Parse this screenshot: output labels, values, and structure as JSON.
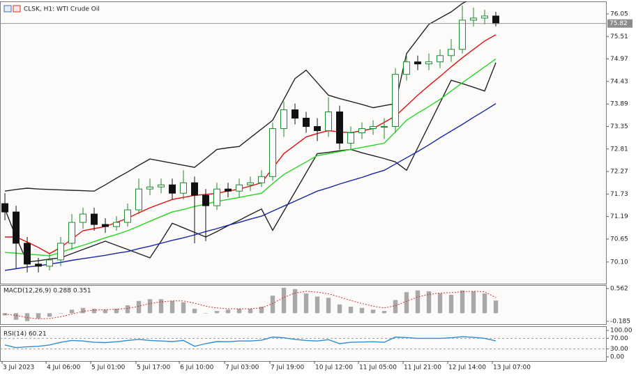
{
  "chart_data": [
    {
      "type": "candlestick",
      "title": "CLSK, H1:  WTI Crude Oil",
      "up_color": "#1b8a2a",
      "down_color": "#111111",
      "open": [
        71.5,
        71.3,
        70.55,
        70.05,
        70.0,
        70.15,
        70.55,
        71.05,
        71.25,
        71.0,
        70.95,
        71.05,
        71.35,
        71.85,
        71.9,
        71.95,
        71.75,
        72.0,
        71.7,
        71.45,
        71.85,
        71.8,
        71.95,
        72.0,
        72.15,
        73.3,
        73.75,
        73.55,
        73.35,
        73.25,
        73.7,
        72.95,
        73.2,
        73.3,
        73.35,
        73.35,
        74.6,
        74.9,
        74.85,
        74.9,
        75.05,
        75.2,
        75.9,
        75.95,
        76.0
      ],
      "high": [
        71.75,
        71.45,
        70.7,
        70.2,
        70.3,
        70.7,
        71.25,
        71.4,
        71.4,
        71.15,
        71.2,
        71.5,
        72.1,
        72.1,
        72.1,
        72.1,
        72.3,
        72.15,
        71.85,
        72.0,
        72.0,
        72.1,
        72.15,
        72.3,
        73.45,
        73.95,
        73.9,
        73.7,
        73.55,
        74.05,
        73.85,
        73.35,
        73.45,
        73.5,
        73.55,
        74.75,
        75.05,
        75.05,
        75.1,
        75.2,
        75.45,
        76.25,
        76.2,
        76.15,
        76.1
      ],
      "low": [
        71.1,
        69.95,
        69.85,
        69.85,
        69.9,
        70.0,
        70.4,
        70.9,
        70.85,
        70.8,
        70.85,
        70.95,
        71.25,
        71.7,
        71.75,
        71.6,
        71.6,
        70.55,
        70.6,
        71.35,
        71.65,
        71.65,
        71.8,
        71.9,
        72.05,
        73.1,
        73.4,
        73.2,
        73.0,
        73.1,
        72.8,
        72.8,
        73.05,
        73.15,
        73.05,
        73.2,
        74.45,
        74.7,
        74.7,
        74.75,
        74.9,
        75.1,
        75.75,
        75.8,
        75.75
      ],
      "close": [
        71.3,
        70.55,
        70.05,
        70.0,
        70.15,
        70.55,
        71.05,
        71.25,
        71.0,
        70.95,
        71.05,
        71.35,
        71.85,
        71.9,
        71.95,
        71.75,
        72.0,
        71.7,
        71.45,
        71.85,
        71.8,
        71.95,
        72.0,
        72.15,
        73.3,
        73.75,
        73.55,
        73.35,
        73.25,
        73.7,
        72.95,
        73.2,
        73.3,
        73.35,
        73.35,
        74.6,
        74.9,
        74.85,
        74.9,
        75.05,
        75.2,
        75.9,
        75.95,
        76.0,
        75.82
      ],
      "series": [
        {
          "color": "#222222",
          "values": [
            71.8,
            71.84,
            71.87,
            71.85,
            71.84,
            71.83,
            71.82,
            71.81,
            71.8,
            71.95,
            72.11,
            72.26,
            72.42,
            72.57,
            72.52,
            72.47,
            72.42,
            72.37,
            72.58,
            72.8,
            72.84,
            72.87,
            73.08,
            73.29,
            73.5,
            74.0,
            74.5,
            74.7,
            74.4,
            74.1,
            74.02,
            73.95,
            73.88,
            73.8,
            73.85,
            73.9,
            75.1,
            75.45,
            75.8,
            75.95,
            76.1,
            76.3,
            76.45,
            76.55,
            76.6
          ]
        },
        {
          "color": "#222222",
          "values": [
            71.37,
            70.7,
            70.1,
            70.13,
            70.17,
            70.2,
            70.3,
            70.4,
            70.5,
            70.6,
            70.5,
            70.4,
            70.3,
            70.2,
            70.6,
            71.03,
            70.92,
            70.81,
            70.7,
            70.83,
            70.97,
            71.1,
            71.24,
            71.37,
            70.86,
            71.32,
            71.78,
            72.24,
            72.7,
            72.73,
            72.77,
            72.8,
            72.72,
            72.65,
            72.58,
            72.5,
            72.3,
            72.84,
            73.38,
            73.92,
            74.46,
            74.38,
            74.29,
            74.2,
            74.88
          ]
        },
        {
          "color": "#e01010",
          "values": [
            70.7,
            70.7,
            70.58,
            70.45,
            70.3,
            70.45,
            70.65,
            70.85,
            70.9,
            70.95,
            71.05,
            71.15,
            71.28,
            71.4,
            71.5,
            71.6,
            71.65,
            71.7,
            71.72,
            71.75,
            71.8,
            71.85,
            71.92,
            72.0,
            72.35,
            72.7,
            72.9,
            73.1,
            73.18,
            73.25,
            73.22,
            73.2,
            73.25,
            73.3,
            73.45,
            73.6,
            73.85,
            74.1,
            74.33,
            74.55,
            74.78,
            75.0,
            75.2,
            75.4,
            75.55
          ]
        },
        {
          "color": "#22d622",
          "values": [
            70.33,
            70.31,
            70.29,
            70.27,
            70.25,
            70.33,
            70.42,
            70.5,
            70.59,
            70.68,
            70.76,
            70.85,
            70.96,
            71.08,
            71.19,
            71.3,
            71.36,
            71.43,
            71.49,
            71.55,
            71.6,
            71.65,
            71.7,
            71.75,
            71.98,
            72.2,
            72.35,
            72.5,
            72.65,
            72.7,
            72.75,
            72.8,
            72.85,
            72.9,
            72.95,
            73.22,
            73.5,
            73.67,
            73.83,
            74.0,
            74.2,
            74.4,
            74.59,
            74.78,
            74.97
          ]
        },
        {
          "color": "#1526a8",
          "values": [
            69.9,
            69.94,
            69.98,
            70.01,
            70.05,
            70.09,
            70.14,
            70.18,
            70.22,
            70.26,
            70.31,
            70.35,
            70.42,
            70.48,
            70.55,
            70.62,
            70.68,
            70.75,
            70.83,
            70.9,
            70.98,
            71.05,
            71.13,
            71.2,
            71.32,
            71.44,
            71.56,
            71.68,
            71.8,
            71.88,
            71.97,
            72.05,
            72.13,
            72.22,
            72.3,
            72.45,
            72.6,
            72.75,
            72.91,
            73.08,
            73.24,
            73.4,
            73.57,
            73.73,
            73.9
          ]
        }
      ],
      "current_price": 75.82,
      "xlim": [
        -0.44,
        53.94
      ],
      "ylim": [
        69.58,
        76.35
      ],
      "yticks": [
        76.05,
        75.51,
        74.97,
        74.43,
        73.89,
        73.35,
        72.81,
        72.27,
        71.73,
        71.19,
        70.65,
        {
          "value": 70.1,
          "label": "70.10"
        }
      ]
    },
    {
      "type": "macd",
      "title": "MACD(12,26,9) 0.288 0.351",
      "series": [
        {
          "style": "bar",
          "color": "#a8a8a8",
          "values": [
            -0.05,
            -0.15,
            -0.18,
            -0.12,
            -0.08,
            0.0,
            0.08,
            0.12,
            0.1,
            0.08,
            0.1,
            0.18,
            0.28,
            0.32,
            0.32,
            0.28,
            0.25,
            0.1,
            0.0,
            0.05,
            0.08,
            0.1,
            0.1,
            0.15,
            0.4,
            0.58,
            0.55,
            0.45,
            0.38,
            0.35,
            0.2,
            0.15,
            0.12,
            0.08,
            0.05,
            0.3,
            0.48,
            0.52,
            0.5,
            0.45,
            0.42,
            0.52,
            0.5,
            0.45,
            0.288
          ]
        },
        {
          "style": "dotted",
          "color": "#d32f2f",
          "values": [
            -0.02,
            -0.05,
            -0.1,
            -0.13,
            -0.12,
            -0.08,
            -0.02,
            0.04,
            0.07,
            0.08,
            0.09,
            0.11,
            0.16,
            0.22,
            0.26,
            0.28,
            0.28,
            0.23,
            0.16,
            0.12,
            0.1,
            0.1,
            0.1,
            0.12,
            0.22,
            0.36,
            0.46,
            0.5,
            0.48,
            0.44,
            0.37,
            0.29,
            0.22,
            0.16,
            0.12,
            0.17,
            0.27,
            0.37,
            0.43,
            0.46,
            0.47,
            0.49,
            0.5,
            0.49,
            0.351
          ]
        }
      ],
      "xlim": [
        -0.44,
        53.94
      ],
      "ylim": [
        -0.249,
        0.641
      ],
      "yticks": [
        0.562,
        -0.185
      ]
    },
    {
      "type": "line",
      "title": "RSI(14) 60.21",
      "series": [
        {
          "color": "#2b8fd6",
          "values": [
            45,
            35,
            38,
            40,
            45,
            55,
            62,
            60,
            55,
            54,
            57,
            62,
            66,
            62,
            60,
            58,
            62,
            40,
            50,
            58,
            57,
            60,
            60,
            63,
            75,
            72,
            66,
            62,
            60,
            65,
            50,
            55,
            56,
            57,
            55,
            75,
            73,
            70,
            70,
            70,
            72,
            76,
            74,
            70,
            60.21
          ]
        }
      ],
      "levels": [
        70,
        30
      ],
      "xlim": [
        -0.44,
        53.94
      ],
      "ylim": [
        -15.8,
        115.8
      ],
      "yticks": [
        {
          "value": 100,
          "label": "100.00"
        },
        {
          "value": 70,
          "label": "70.00"
        },
        {
          "value": 30,
          "label": "30.00"
        },
        {
          "value": 0,
          "label": "0.00"
        }
      ],
      "xticks": [
        {
          "value": -0.25,
          "label": "3 Jul 2023"
        },
        {
          "value": 3.69,
          "label": "4 Jul 06:00"
        },
        {
          "value": 7.69,
          "label": "5 Jul 01:00"
        },
        {
          "value": 11.75,
          "label": "5 Jul 17:00"
        },
        {
          "value": 15.63,
          "label": "6 Jul 10:00"
        },
        {
          "value": 19.69,
          "label": "7 Jul 03:00"
        },
        {
          "value": 23.75,
          "label": "7 Jul 19:00"
        },
        {
          "value": 27.75,
          "label": "10 Jul 12:00"
        },
        {
          "value": 31.69,
          "label": "11 Jul 05:00"
        },
        {
          "value": 35.69,
          "label": "11 Jul 21:00"
        },
        {
          "value": 39.69,
          "label": "12 Jul 14:00"
        },
        {
          "value": 43.69,
          "label": "13 Jul 07:00"
        }
      ]
    }
  ]
}
